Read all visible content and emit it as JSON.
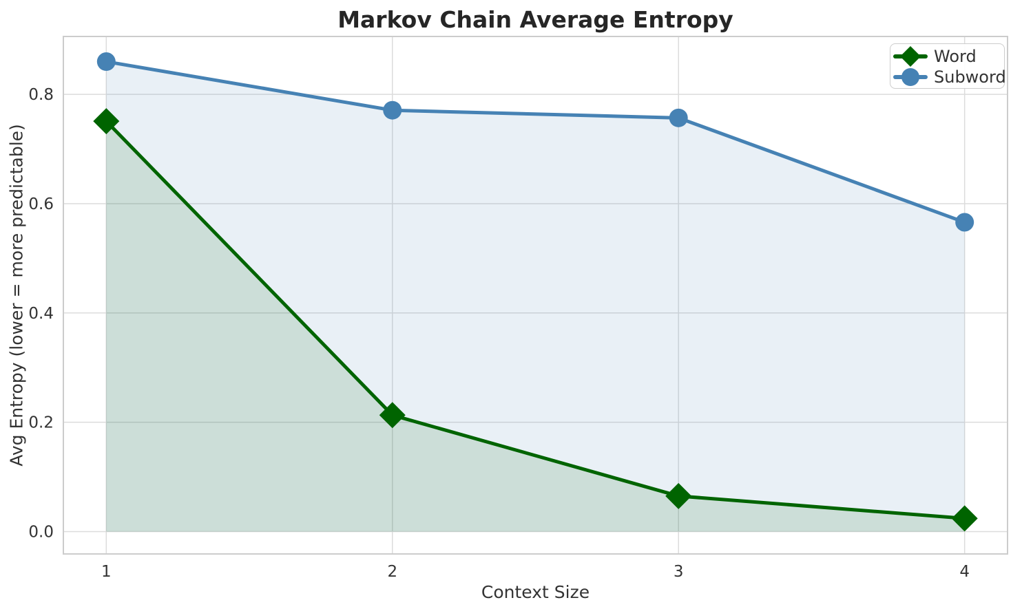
{
  "figure": {
    "title": "Markov Chain Average Entropy"
  },
  "chart_data": {
    "type": "line",
    "title": "Markov Chain Average Entropy",
    "xlabel": "Context Size",
    "ylabel": "Avg Entropy (lower = more predictable)",
    "x": [
      1,
      2,
      3,
      4
    ],
    "series": [
      {
        "name": "Word",
        "color": "#006400",
        "marker": "diamond",
        "values": [
          0.751,
          0.213,
          0.065,
          0.024
        ],
        "area_fill": true,
        "fill_opacity": 0.12
      },
      {
        "name": "Subword",
        "color": "#4682b4",
        "marker": "circle",
        "values": [
          0.86,
          0.771,
          0.757,
          0.566
        ],
        "area_fill": true,
        "fill_opacity": 0.12
      }
    ],
    "xlim": [
      0.85,
      4.15
    ],
    "ylim": [
      -0.041,
      0.906
    ],
    "xticks": [
      {
        "v": 1,
        "label": "1"
      },
      {
        "v": 2,
        "label": "2"
      },
      {
        "v": 3,
        "label": "3"
      },
      {
        "v": 4,
        "label": "4"
      }
    ],
    "yticks": [
      {
        "v": 0.0,
        "label": "0.0"
      },
      {
        "v": 0.2,
        "label": "0.2"
      },
      {
        "v": 0.4,
        "label": "0.4"
      },
      {
        "v": 0.6,
        "label": "0.6"
      },
      {
        "v": 0.8,
        "label": "0.8"
      }
    ],
    "grid": true,
    "legend_position": "upper right",
    "colors": {
      "grid": "#dcdcdc",
      "spine": "#cccccc",
      "text": "#333333",
      "title": "#262626"
    }
  }
}
